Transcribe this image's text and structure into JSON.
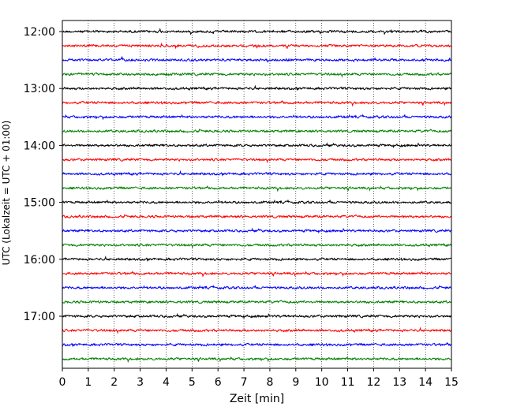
{
  "chart_data": {
    "type": "line",
    "chart_kind": "helicorder",
    "xlabel": "Zeit  [min]",
    "ylabel": "UTC (Lokalzeit = UTC + 01:00)",
    "xlim": [
      0,
      15
    ],
    "x_ticks": [
      "0",
      "1",
      "2",
      "3",
      "4",
      "5",
      "6",
      "7",
      "8",
      "9",
      "10",
      "11",
      "12",
      "13",
      "14",
      "15"
    ],
    "y_ticks": [
      "12:00",
      "13:00",
      "14:00",
      "15:00",
      "16:00",
      "17:00"
    ],
    "trace_minutes": 15,
    "trace_start_times": [
      "12:00",
      "12:15",
      "12:30",
      "12:45",
      "13:00",
      "13:15",
      "13:30",
      "13:45",
      "14:00",
      "14:15",
      "14:30",
      "14:45",
      "15:00",
      "15:15",
      "15:30",
      "15:45",
      "16:00",
      "16:15",
      "16:30",
      "16:45",
      "17:00",
      "17:15",
      "17:30",
      "17:45"
    ],
    "trace_colors": [
      "#000000",
      "#ff0000",
      "#0000ff",
      "#008000"
    ],
    "grid": {
      "vertical_dotted": true,
      "horizontal": false
    }
  }
}
